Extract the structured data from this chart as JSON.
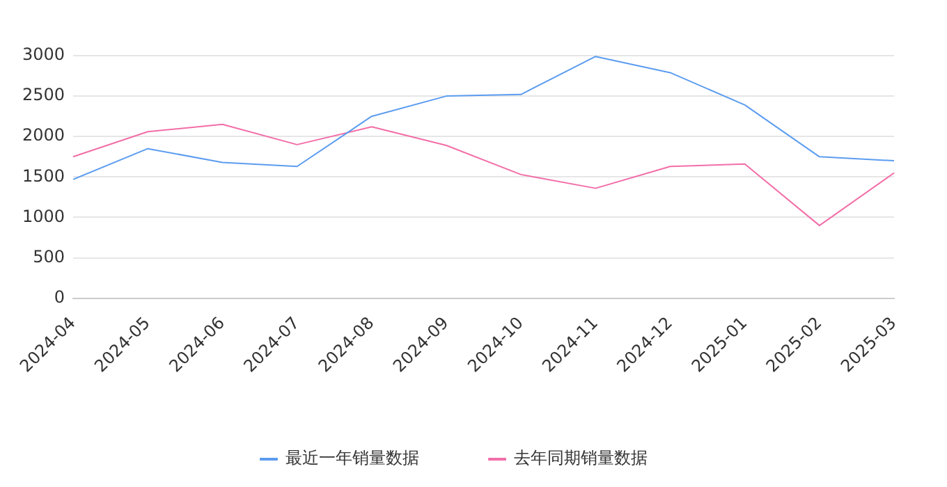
{
  "chart_data": {
    "type": "line",
    "categories": [
      "2024-04",
      "2024-05",
      "2024-06",
      "2024-07",
      "2024-08",
      "2024-09",
      "2024-10",
      "2024-11",
      "2024-12",
      "2025-01",
      "2025-02",
      "2025-03"
    ],
    "series": [
      {
        "name": "最近一年销量数据",
        "color": "#5b9cf0",
        "values": [
          1470,
          1850,
          1680,
          1630,
          2250,
          2500,
          2520,
          2990,
          2790,
          2390,
          1750,
          1700
        ]
      },
      {
        "name": "去年同期销量数据",
        "color": "#f26ea8",
        "values": [
          1750,
          2060,
          2150,
          1900,
          2120,
          1890,
          1530,
          1360,
          1630,
          1660,
          900,
          1550
        ]
      }
    ],
    "ylim": [
      0,
      3000
    ],
    "yticks": [
      0,
      500,
      1000,
      1500,
      2000,
      2500,
      3000
    ],
    "grid": "y",
    "legend": "bottom",
    "marker": "none",
    "line_style": "solid"
  }
}
